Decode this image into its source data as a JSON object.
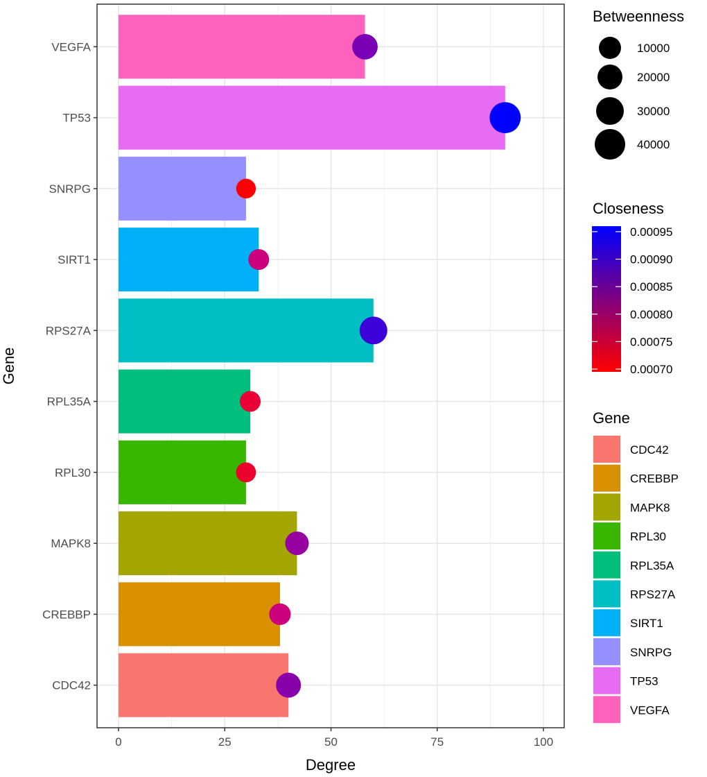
{
  "chart_data": {
    "type": "bar",
    "title": "",
    "xlabel": "Degree",
    "ylabel": "Gene",
    "xlim": [
      -5.5,
      104.5
    ],
    "x_ticks": [
      0,
      25,
      50,
      75,
      100
    ],
    "grid": true,
    "orientation": "horizontal",
    "categories": [
      "CDC42",
      "CREBBP",
      "MAPK8",
      "RPL30",
      "RPL35A",
      "RPS27A",
      "SIRT1",
      "SNRPG",
      "TP53",
      "VEGFA"
    ],
    "values": [
      40,
      38,
      42,
      30,
      31,
      60,
      33,
      30,
      91,
      58
    ],
    "bar_colors": [
      "#F8766D",
      "#D89000",
      "#A3A500",
      "#39B600",
      "#00BF7D",
      "#00BFC4",
      "#00B0F6",
      "#9590FF",
      "#E76BF3",
      "#FF62BC"
    ],
    "points": {
      "betweenness": [
        20000,
        8000,
        15000,
        2000,
        5000,
        30000,
        5000,
        1000,
        42000,
        22000
      ],
      "closeness": [
        0.00087,
        0.00082,
        0.00086,
        0.00074,
        0.00075,
        0.00092,
        0.00082,
        0.0007,
        0.00096,
        0.00088
      ]
    },
    "legends": {
      "betweenness": {
        "title": "Betweenness",
        "breaks": [
          10000,
          20000,
          30000,
          40000
        ],
        "labels": [
          "10000",
          "20000",
          "30000",
          "40000"
        ],
        "placement": "top-right"
      },
      "closeness": {
        "title": "Closeness",
        "range": [
          0.000695,
          0.00096
        ],
        "breaks": [
          0.0007,
          0.00075,
          0.0008,
          0.00085,
          0.0009,
          0.00095
        ],
        "labels": [
          "0.00070",
          "0.00075",
          "0.00080",
          "0.00085",
          "0.00090",
          "0.00095"
        ],
        "low_color": "#FF0000",
        "high_color": "#0000FF",
        "placement": "right"
      },
      "gene": {
        "title": "Gene",
        "items": [
          "CDC42",
          "CREBBP",
          "MAPK8",
          "RPL30",
          "RPL35A",
          "RPS27A",
          "SIRT1",
          "SNRPG",
          "TP53",
          "VEGFA"
        ],
        "placement": "bottom-right"
      }
    }
  }
}
